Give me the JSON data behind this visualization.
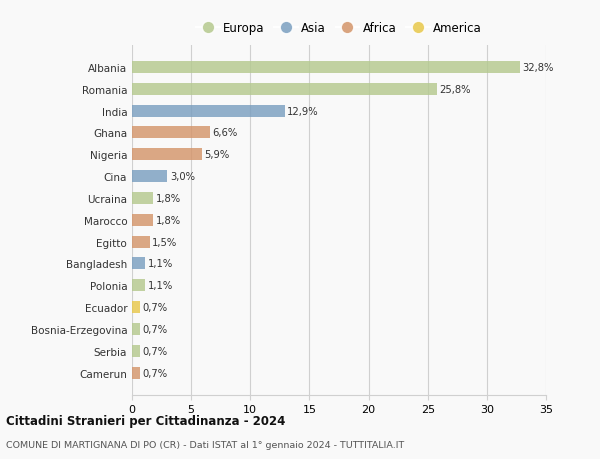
{
  "countries": [
    "Albania",
    "Romania",
    "India",
    "Ghana",
    "Nigeria",
    "Cina",
    "Ucraina",
    "Marocco",
    "Egitto",
    "Bangladesh",
    "Polonia",
    "Ecuador",
    "Bosnia-Erzegovina",
    "Serbia",
    "Camerun"
  ],
  "values": [
    32.8,
    25.8,
    12.9,
    6.6,
    5.9,
    3.0,
    1.8,
    1.8,
    1.5,
    1.1,
    1.1,
    0.7,
    0.7,
    0.7,
    0.7
  ],
  "labels": [
    "32,8%",
    "25,8%",
    "12,9%",
    "6,6%",
    "5,9%",
    "3,0%",
    "1,8%",
    "1,8%",
    "1,5%",
    "1,1%",
    "1,1%",
    "0,7%",
    "0,7%",
    "0,7%",
    "0,7%"
  ],
  "continents": [
    "Europa",
    "Europa",
    "Asia",
    "Africa",
    "Africa",
    "Asia",
    "Europa",
    "Africa",
    "Africa",
    "Asia",
    "Europa",
    "America",
    "Europa",
    "Europa",
    "Africa"
  ],
  "colors": {
    "Europa": "#b5c98e",
    "Asia": "#7a9fc0",
    "Africa": "#d4956a",
    "America": "#e8c84a"
  },
  "legend_order": [
    "Europa",
    "Asia",
    "Africa",
    "America"
  ],
  "title_main": "Cittadini Stranieri per Cittadinanza - 2024",
  "title_sub": "COMUNE DI MARTIGNANA DI PO (CR) - Dati ISTAT al 1° gennaio 2024 - TUTTITALIA.IT",
  "xlim": [
    0,
    35
  ],
  "xticks": [
    0,
    5,
    10,
    15,
    20,
    25,
    30,
    35
  ],
  "bg_color": "#f9f9f9",
  "grid_color": "#d0d0d0"
}
